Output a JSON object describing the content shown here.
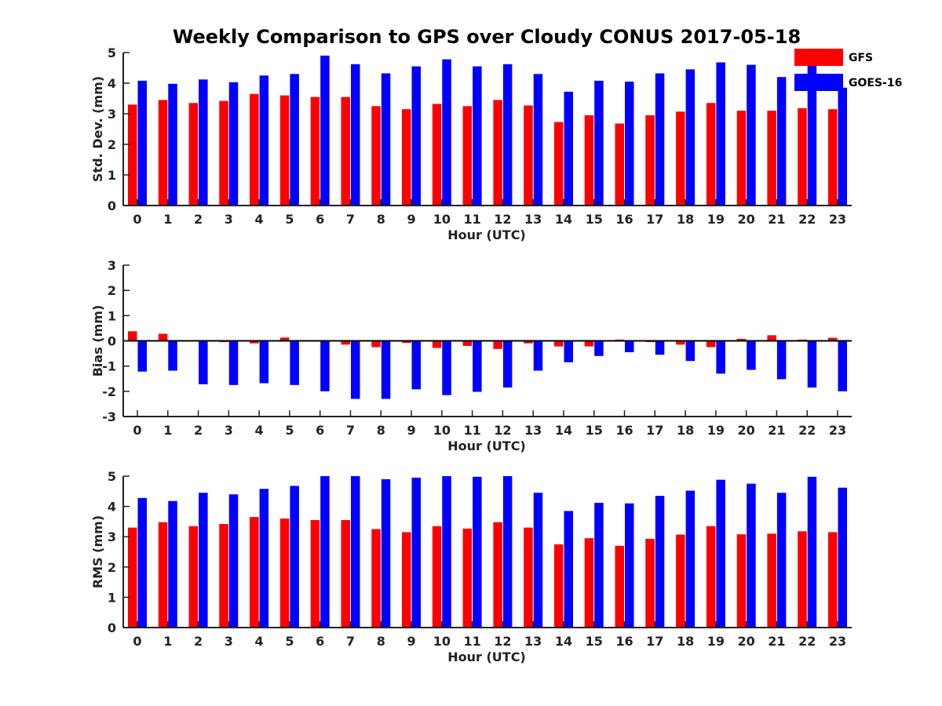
{
  "title": "Weekly Comparison to GPS over Cloudy CONUS 2017-05-18",
  "colors": {
    "GFS": "#ff0000",
    "GOES-16": "#0000ff"
  },
  "legend": {
    "position": "top-right",
    "items": [
      "GFS",
      "GOES-16"
    ]
  },
  "chart_data": [
    {
      "type": "bar",
      "xlabel": "Hour (UTC)",
      "ylabel": "Std. Dev. (mm)",
      "ylim": [
        0,
        5
      ],
      "yticks": [
        0,
        1,
        2,
        3,
        4,
        5
      ],
      "categories": [
        "0",
        "1",
        "2",
        "3",
        "4",
        "5",
        "6",
        "7",
        "8",
        "9",
        "10",
        "11",
        "12",
        "13",
        "14",
        "15",
        "16",
        "17",
        "18",
        "19",
        "20",
        "21",
        "22",
        "23"
      ],
      "series": [
        {
          "name": "GFS",
          "values": [
            3.3,
            3.45,
            3.35,
            3.42,
            3.65,
            3.6,
            3.55,
            3.55,
            3.25,
            3.15,
            3.32,
            3.25,
            3.45,
            3.27,
            2.73,
            2.95,
            2.68,
            2.95,
            3.07,
            3.35,
            3.1,
            3.1,
            3.18,
            3.15
          ]
        },
        {
          "name": "GOES-16",
          "values": [
            4.08,
            3.98,
            4.12,
            4.03,
            4.25,
            4.3,
            4.9,
            4.62,
            4.32,
            4.55,
            4.78,
            4.55,
            4.62,
            4.3,
            3.72,
            4.08,
            4.05,
            4.32,
            4.45,
            4.68,
            4.6,
            4.2,
            4.58,
            3.85
          ]
        }
      ]
    },
    {
      "type": "bar",
      "xlabel": "Hour (UTC)",
      "ylabel": "Bias (mm)",
      "ylim": [
        -3,
        3
      ],
      "yticks": [
        -3,
        -2,
        -1,
        0,
        1,
        2,
        3
      ],
      "categories": [
        "0",
        "1",
        "2",
        "3",
        "4",
        "5",
        "6",
        "7",
        "8",
        "9",
        "10",
        "11",
        "12",
        "13",
        "14",
        "15",
        "16",
        "17",
        "18",
        "19",
        "20",
        "21",
        "22",
        "23"
      ],
      "series": [
        {
          "name": "GFS",
          "values": [
            0.38,
            0.28,
            -0.02,
            -0.05,
            -0.1,
            0.13,
            -0.02,
            -0.15,
            -0.25,
            -0.08,
            -0.28,
            -0.2,
            -0.32,
            -0.1,
            -0.22,
            -0.22,
            0.05,
            -0.05,
            -0.15,
            -0.25,
            0.08,
            0.22,
            0.05,
            0.12
          ]
        },
        {
          "name": "GOES-16",
          "values": [
            -1.22,
            -1.18,
            -1.72,
            -1.75,
            -1.68,
            -1.75,
            -2.0,
            -2.3,
            -2.3,
            -1.92,
            -2.15,
            -2.02,
            -1.85,
            -1.18,
            -0.85,
            -0.6,
            -0.45,
            -0.55,
            -0.8,
            -1.3,
            -1.15,
            -1.52,
            -1.85,
            -2.0
          ]
        }
      ]
    },
    {
      "type": "bar",
      "xlabel": "Hour (UTC)",
      "ylabel": "RMS (mm)",
      "ylim": [
        0,
        5
      ],
      "yticks": [
        0,
        1,
        2,
        3,
        4,
        5
      ],
      "categories": [
        "0",
        "1",
        "2",
        "3",
        "4",
        "5",
        "6",
        "7",
        "8",
        "9",
        "10",
        "11",
        "12",
        "13",
        "14",
        "15",
        "16",
        "17",
        "18",
        "19",
        "20",
        "21",
        "22",
        "23"
      ],
      "series": [
        {
          "name": "GFS",
          "values": [
            3.3,
            3.48,
            3.35,
            3.42,
            3.65,
            3.6,
            3.55,
            3.55,
            3.25,
            3.15,
            3.35,
            3.27,
            3.48,
            3.3,
            2.75,
            2.95,
            2.7,
            2.93,
            3.07,
            3.35,
            3.08,
            3.1,
            3.18,
            3.15
          ]
        },
        {
          "name": "GOES-16",
          "values": [
            4.28,
            4.18,
            4.45,
            4.4,
            4.58,
            4.68,
            5.0,
            5.0,
            4.9,
            4.95,
            5.0,
            4.98,
            5.0,
            4.45,
            3.85,
            4.12,
            4.1,
            4.35,
            4.52,
            4.88,
            4.75,
            4.45,
            4.98,
            4.62
          ]
        }
      ]
    }
  ]
}
